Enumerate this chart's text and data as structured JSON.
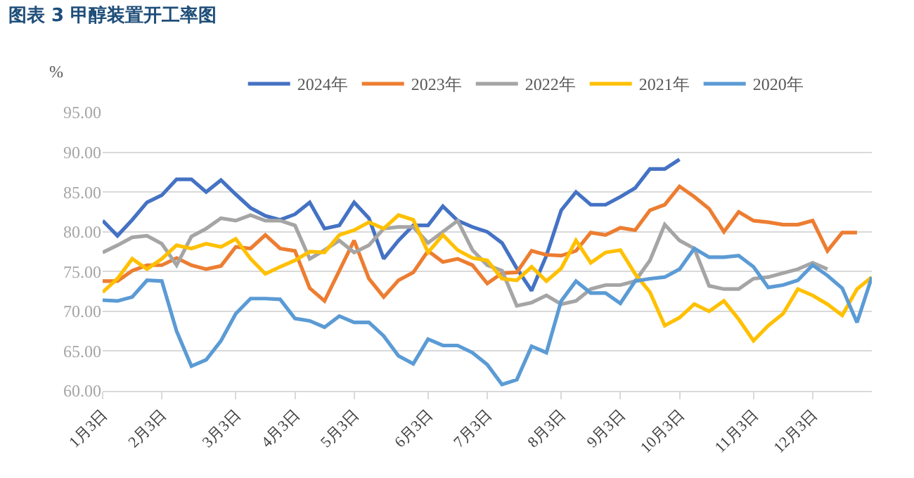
{
  "chart_data": {
    "type": "line",
    "title": "图表 3  甲醇装置开工率图",
    "ylabel": "%",
    "categories": [
      "1月3日",
      null,
      null,
      null,
      "2月3日",
      null,
      null,
      null,
      null,
      "3月3日",
      null,
      null,
      null,
      "4月3日",
      null,
      null,
      null,
      "5月3日",
      null,
      null,
      null,
      null,
      "6月3日",
      null,
      null,
      null,
      "7月3日",
      null,
      null,
      null,
      null,
      "8月3日",
      null,
      null,
      null,
      "9月3日",
      null,
      null,
      null,
      "10月3日",
      null,
      null,
      null,
      null,
      "11月3日",
      null,
      null,
      null,
      "12月3日",
      null,
      null,
      null,
      null
    ],
    "series": [
      {
        "name": "2024年",
        "color": "#4472c4",
        "values": [
          81.4,
          79.5,
          81.5,
          83.7,
          84.6,
          86.6,
          86.6,
          85,
          86.5,
          84.7,
          83,
          82,
          81.5,
          82.2,
          83.7,
          80.4,
          80.8,
          83.7,
          81.7,
          76.6,
          78.9,
          80.8,
          80.8,
          83.2,
          81.4,
          80.6,
          80,
          78.6,
          75.4,
          72.6,
          77,
          82.7,
          85,
          83.4,
          83.4,
          84.4,
          85.5,
          87.9,
          87.9,
          89.1,
          null,
          null,
          null,
          null,
          null,
          null,
          null,
          null,
          null,
          null,
          null,
          null,
          null
        ]
      },
      {
        "name": "2023年",
        "color": "#ed7d31",
        "values": [
          73.8,
          73.8,
          75.1,
          75.8,
          75.8,
          76.7,
          75.8,
          75.3,
          75.7,
          78.1,
          77.9,
          79.6,
          77.9,
          77.6,
          72.9,
          71.3,
          75.1,
          78.9,
          74.1,
          71.8,
          73.9,
          74.9,
          77.6,
          76.2,
          76.6,
          75.8,
          73.5,
          74.8,
          74.9,
          77.6,
          77.1,
          77,
          77.6,
          79.9,
          79.6,
          80.5,
          80.2,
          82.7,
          83.4,
          85.7,
          84.4,
          82.9,
          80,
          82.5,
          81.4,
          81.2,
          80.9,
          80.9,
          81.4,
          77.6,
          79.9,
          79.9,
          null
        ]
      },
      {
        "name": "2022年",
        "color": "#a5a5a5",
        "values": [
          77.4,
          78.3,
          79.3,
          79.5,
          78.5,
          75.8,
          79.4,
          80.4,
          81.7,
          81.4,
          82.1,
          81.4,
          81.4,
          80.8,
          76.6,
          77.7,
          78.9,
          77.4,
          78.3,
          80.4,
          80.6,
          80.6,
          78.6,
          80,
          81.4,
          77.7,
          75.8,
          75.1,
          70.7,
          71.1,
          72,
          70.9,
          71.3,
          72.8,
          73.3,
          73.3,
          73.8,
          76.4,
          80.9,
          78.9,
          77.9,
          73.2,
          72.8,
          72.8,
          74.1,
          74.3,
          74.8,
          75.3,
          76.1,
          75.3,
          null,
          null,
          null
        ]
      },
      {
        "name": "2021年",
        "color": "#ffc000",
        "values": [
          72.4,
          74.1,
          76.6,
          75.3,
          76.6,
          78.3,
          77.9,
          78.5,
          78.1,
          79.1,
          76.6,
          74.7,
          75.6,
          76.4,
          77.5,
          77.4,
          79.6,
          80.2,
          81.2,
          80.4,
          82.1,
          81.5,
          77.4,
          79.6,
          77.7,
          76.7,
          76.4,
          74.1,
          73.9,
          75.6,
          73.8,
          75.4,
          78.9,
          76.1,
          77.4,
          77.7,
          74.7,
          72.4,
          68.2,
          69.2,
          70.9,
          70,
          71.3,
          69,
          66.3,
          68.2,
          69.7,
          72.8,
          72,
          70.9,
          69.5,
          72.8,
          74.3
        ]
      },
      {
        "name": "2020年",
        "color": "#5b9bd5",
        "values": [
          71.4,
          71.3,
          71.8,
          73.9,
          73.8,
          67.5,
          63.1,
          63.9,
          66.3,
          69.7,
          71.6,
          71.6,
          71.5,
          69.1,
          68.8,
          68,
          69.4,
          68.6,
          68.6,
          66.9,
          64.4,
          63.4,
          66.5,
          65.7,
          65.7,
          64.8,
          63.3,
          60.8,
          61.4,
          65.6,
          64.8,
          71.3,
          73.8,
          72.3,
          72.3,
          71,
          73.8,
          74.1,
          74.3,
          75.3,
          77.9,
          76.8,
          76.8,
          77,
          75.6,
          73,
          73.3,
          73.9,
          75.8,
          74.5,
          72.9,
          68.6,
          74.3
        ]
      }
    ],
    "ylim": [
      60,
      95
    ],
    "yticks": [
      {
        "value": 60,
        "label": "60.00"
      },
      {
        "value": 65,
        "label": "65.00"
      },
      {
        "value": 70,
        "label": "70.00"
      },
      {
        "value": 75,
        "label": "75.00"
      },
      {
        "value": 80,
        "label": "80.00"
      },
      {
        "value": 85,
        "label": "85.00"
      },
      {
        "value": 90,
        "label": "90.00"
      },
      {
        "value": 95,
        "label": "95.00"
      }
    ],
    "grid": "y",
    "legend": "top",
    "marker": "none",
    "line_style": "solid"
  }
}
